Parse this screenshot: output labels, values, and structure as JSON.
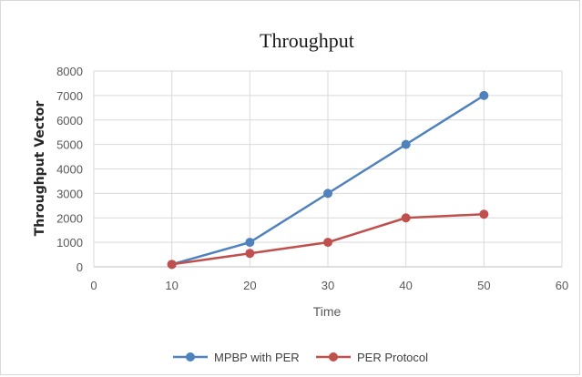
{
  "chart_data": {
    "type": "line",
    "title": "Throughput",
    "xlabel": "Time",
    "ylabel": "Throughput Vector",
    "xlim": [
      0,
      60
    ],
    "ylim": [
      0,
      8000
    ],
    "x_ticks": [
      0,
      10,
      20,
      30,
      40,
      50,
      60
    ],
    "y_ticks": [
      0,
      1000,
      2000,
      3000,
      4000,
      5000,
      6000,
      7000,
      8000
    ],
    "grid": true,
    "legend_position": "bottom",
    "series": [
      {
        "name": "MPBP with PER",
        "color": "#4f81bd",
        "x": [
          10,
          20,
          30,
          40,
          50
        ],
        "y": [
          100,
          1000,
          3000,
          5000,
          7000
        ]
      },
      {
        "name": "PER Protocol",
        "color": "#c0504d",
        "x": [
          10,
          20,
          30,
          40,
          50
        ],
        "y": [
          100,
          550,
          1000,
          2000,
          2150
        ]
      }
    ]
  }
}
